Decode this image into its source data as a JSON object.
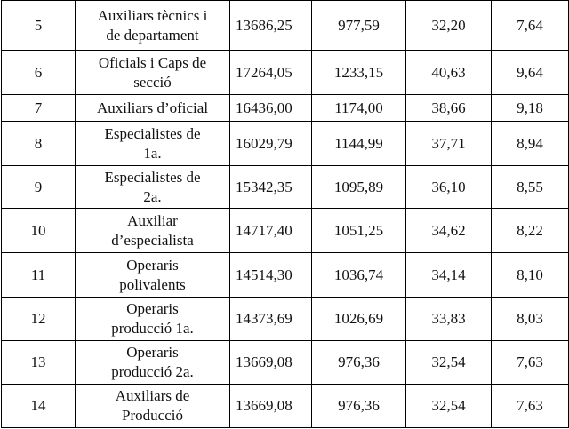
{
  "table": {
    "rows": [
      [
        "5",
        [
          "Auxiliars tècnics i",
          "de departament"
        ],
        "13686,25",
        "977,59",
        "32,20",
        "7,64"
      ],
      [
        "6",
        [
          "Oficials i Caps de",
          "secció"
        ],
        "17264,05",
        "1233,15",
        "40,63",
        "9,64"
      ],
      [
        "7",
        [
          "Auxiliars d’oficial"
        ],
        "16436,00",
        "1174,00",
        "38,66",
        "9,18"
      ],
      [
        "8",
        [
          "Especialistes de",
          "1a."
        ],
        "16029,79",
        "1144,99",
        "37,71",
        "8,94"
      ],
      [
        "9",
        [
          "Especialistes de",
          "2a."
        ],
        "15342,35",
        "1095,89",
        "36,10",
        "8,55"
      ],
      [
        "10",
        [
          "Auxiliar",
          "d’especialista"
        ],
        "14717,40",
        "1051,25",
        "34,62",
        "8,22"
      ],
      [
        "11",
        [
          "Operaris",
          "polivalents"
        ],
        "14514,30",
        "1036,74",
        "34,14",
        "8,10"
      ],
      [
        "12",
        [
          "Operaris",
          "producció 1a."
        ],
        "14373,69",
        "1026,69",
        "33,83",
        "8,03"
      ],
      [
        "13",
        [
          "Operaris",
          "producció 2a."
        ],
        "13669,08",
        "976,36",
        "32,54",
        "7,63"
      ],
      [
        "14",
        [
          "Auxiliars de",
          "Producció"
        ],
        "13669,08",
        "976,36",
        "32,54",
        "7,63"
      ]
    ]
  }
}
